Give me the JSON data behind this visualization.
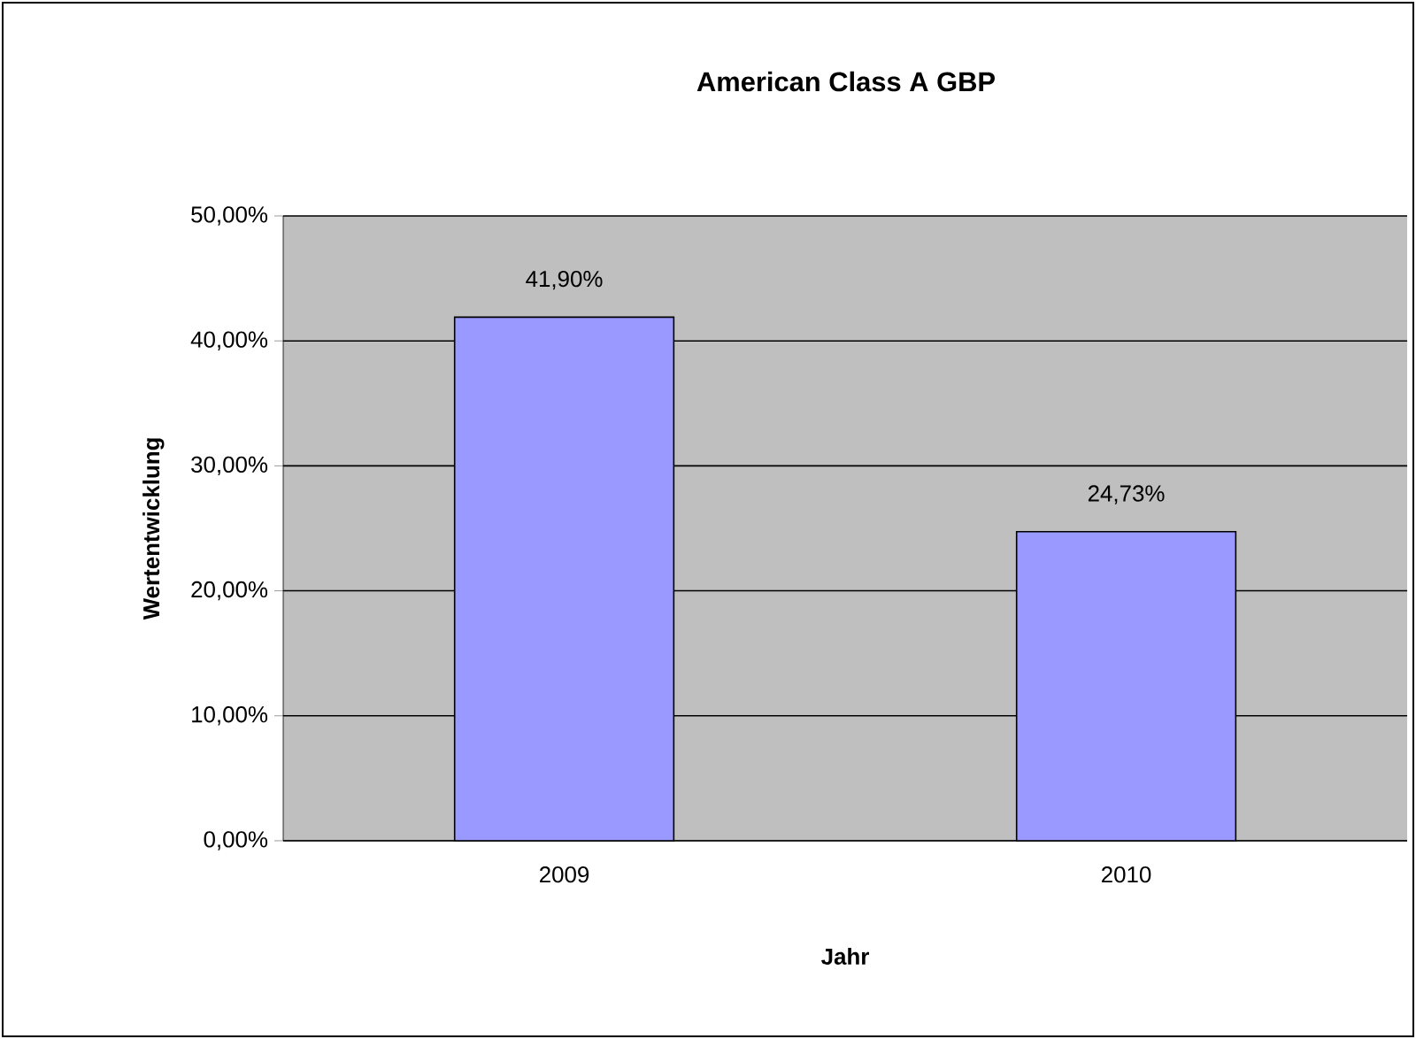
{
  "chart_data": {
    "type": "bar",
    "title": "American Class A GBP",
    "xlabel": "Jahr",
    "ylabel": "Wertentwicklung",
    "categories": [
      "2009",
      "2010"
    ],
    "values": [
      41.9,
      24.73
    ],
    "value_labels": [
      "41,90%",
      "24,73%"
    ],
    "color": "#9999ff",
    "ylim": [
      0,
      50
    ],
    "yticks": [
      {
        "value": 0,
        "label": "0,00%"
      },
      {
        "value": 10,
        "label": "10,00%"
      },
      {
        "value": 20,
        "label": "20,00%"
      },
      {
        "value": 30,
        "label": "30,00%"
      },
      {
        "value": 40,
        "label": "40,00%"
      },
      {
        "value": 50,
        "label": "50,00%"
      }
    ],
    "grid": "y"
  }
}
